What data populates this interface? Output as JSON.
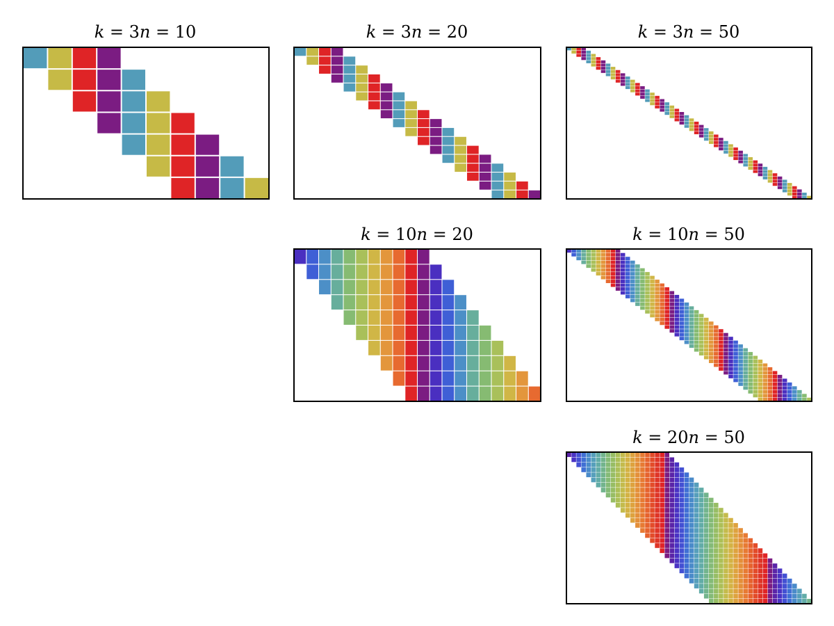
{
  "figure": {
    "description_colors": {
      "background": "#ffffff",
      "frame": "#000000",
      "cell_gap": "#ffffff"
    }
  },
  "palettes": {
    "k3": [
      "#7b1c82",
      "#539cb9",
      "#c6ba46",
      "#df2426"
    ],
    "k10": [
      "#7b1c82",
      "#4a2fc0",
      "#3f5fd6",
      "#4c8fc7",
      "#67ae9c",
      "#86bb72",
      "#a9c05a",
      "#d0b646",
      "#e3963c",
      "#e76a30",
      "#df2426"
    ],
    "k20": [
      "#7b1c82",
      "#5a24a8",
      "#4a33c4",
      "#4350d3",
      "#4070d4",
      "#4a8bc9",
      "#569fbb",
      "#62aca7",
      "#72b48d",
      "#84ba76",
      "#97bd64",
      "#adbf57",
      "#c4bb4c",
      "#d4b244",
      "#dea23e",
      "#e48f39",
      "#e77a33",
      "#e6622d",
      "#e34b29",
      "#df3426",
      "#df2426"
    ]
  },
  "chart_data": [
    {
      "type": "heatmap",
      "title": {
        "k_label": "k",
        "k_value": "3",
        "n_label": "n",
        "n_value": "10"
      },
      "k": 3,
      "n": 10,
      "rows": 7,
      "cols": 10,
      "grid": false,
      "cells": "row i (0-indexed) is filled in columns i through i+k; cell (i, j) colored by palette index (j - k) mod (k+1)",
      "palette": "k3"
    },
    {
      "type": "heatmap",
      "title": {
        "k_label": "k",
        "k_value": "3",
        "n_label": "n",
        "n_value": "20"
      },
      "k": 3,
      "n": 20,
      "rows": 17,
      "cols": 20,
      "grid": false,
      "cells": "row i (0-indexed) is filled in columns i through i+k; cell (i, j) colored by palette index (j - k) mod (k+1)",
      "palette": "k3"
    },
    {
      "type": "heatmap",
      "title": {
        "k_label": "k",
        "k_value": "3",
        "n_label": "n",
        "n_value": "50"
      },
      "k": 3,
      "n": 50,
      "rows": 47,
      "cols": 50,
      "grid": false,
      "cells": "row i (0-indexed) is filled in columns i through i+k; cell (i, j) colored by palette index (j - k) mod (k+1)",
      "palette": "k3"
    },
    {
      "type": "heatmap",
      "title": {
        "k_label": "k",
        "k_value": "10",
        "n_label": "n",
        "n_value": "20"
      },
      "k": 10,
      "n": 20,
      "rows": 10,
      "cols": 20,
      "grid": false,
      "cells": "row i (0-indexed) is filled in columns i through i+k; cell (i, j) colored by palette index (j - k) mod (k+1)",
      "palette": "k10"
    },
    {
      "type": "heatmap",
      "title": {
        "k_label": "k",
        "k_value": "10",
        "n_label": "n",
        "n_value": "50"
      },
      "k": 10,
      "n": 50,
      "rows": 40,
      "cols": 50,
      "grid": false,
      "cells": "row i (0-indexed) is filled in columns i through i+k; cell (i, j) colored by palette index (j - k) mod (k+1)",
      "palette": "k10"
    },
    {
      "type": "heatmap",
      "title": {
        "k_label": "k",
        "k_value": "20",
        "n_label": "n",
        "n_value": "50"
      },
      "k": 20,
      "n": 50,
      "rows": 30,
      "cols": 50,
      "grid": false,
      "cells": "row i (0-indexed) is filled in columns i through i+k; cell (i, j) colored by palette index (j - k) mod (k+1)",
      "palette": "k20"
    }
  ]
}
